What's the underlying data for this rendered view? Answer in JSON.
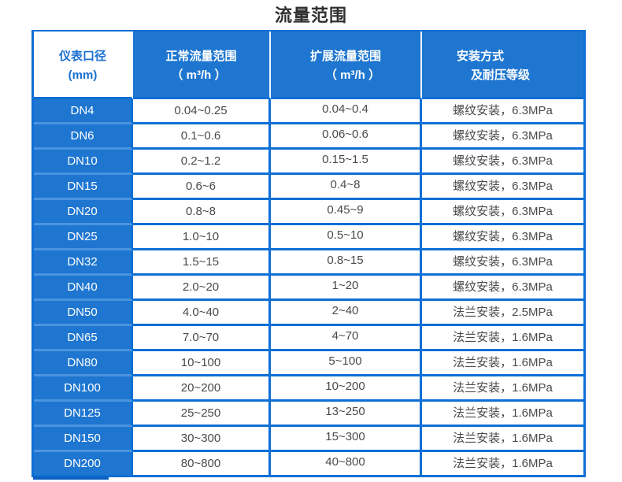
{
  "title": "流量范围",
  "table": {
    "columns": [
      {
        "id": "diameter",
        "line1": "仪表口径",
        "line2": "(mm)"
      },
      {
        "id": "normal_range",
        "line1": "正常流量范围",
        "line2": "（ m³/h ）"
      },
      {
        "id": "extended_range",
        "line1": "扩展流量范围",
        "line2": "（ m³/h ）"
      },
      {
        "id": "installation",
        "line1": "安装方式",
        "line2": "及耐压等级"
      }
    ],
    "rows": [
      {
        "diameter": "DN4",
        "normal": "0.04~0.25",
        "extended": "0.04~0.4",
        "install": "螺纹安装，6.3MPa"
      },
      {
        "diameter": "DN6",
        "normal": "0.1~0.6",
        "extended": "0.06~0.6",
        "install": "螺纹安装，6.3MPa"
      },
      {
        "diameter": "DN10",
        "normal": "0.2~1.2",
        "extended": "0.15~1.5",
        "install": "螺纹安装，6.3MPa"
      },
      {
        "diameter": "DN15",
        "normal": "0.6~6",
        "extended": "0.4~8",
        "install": "螺纹安装，6.3MPa"
      },
      {
        "diameter": "DN20",
        "normal": "0.8~8",
        "extended": "0.45~9",
        "install": "螺纹安装，6.3MPa"
      },
      {
        "diameter": "DN25",
        "normal": "1.0~10",
        "extended": "0.5~10",
        "install": "螺纹安装，6.3MPa"
      },
      {
        "diameter": "DN32",
        "normal": "1.5~15",
        "extended": "0.8~15",
        "install": "螺纹安装，6.3MPa"
      },
      {
        "diameter": "DN40",
        "normal": "2.0~20",
        "extended": "1~20",
        "install": "螺纹安装，6.3MPa"
      },
      {
        "diameter": "DN50",
        "normal": "4.0~40",
        "extended": "2~40",
        "install": "法兰安装，2.5MPa"
      },
      {
        "diameter": "DN65",
        "normal": "7.0~70",
        "extended": "4~70",
        "install": "法兰安装，1.6MPa"
      },
      {
        "diameter": "DN80",
        "normal": "10~100",
        "extended": "5~100",
        "install": "法兰安装，1.6MPa"
      },
      {
        "diameter": "DN100",
        "normal": "20~200",
        "extended": "10~200",
        "install": "法兰安装，1.6MPa"
      },
      {
        "diameter": "DN125",
        "normal": "25~250",
        "extended": "13~250",
        "install": "法兰安装，1.6MPa"
      },
      {
        "diameter": "DN150",
        "normal": "30~300",
        "extended": "15~300",
        "install": "法兰安装，1.6MPa"
      },
      {
        "diameter": "DN200",
        "normal": "80~800",
        "extended": "40~800",
        "install": "法兰安装，1.6MPa"
      }
    ]
  },
  "colors": {
    "cell_blue": "#1e76d0",
    "border_blue": "#0e6fd6",
    "light_separator_blue": "#4a94e0",
    "header_text_blue": "#1a6fd0",
    "data_text": "#4a4a4a",
    "title_text": "#2f2f2f"
  }
}
